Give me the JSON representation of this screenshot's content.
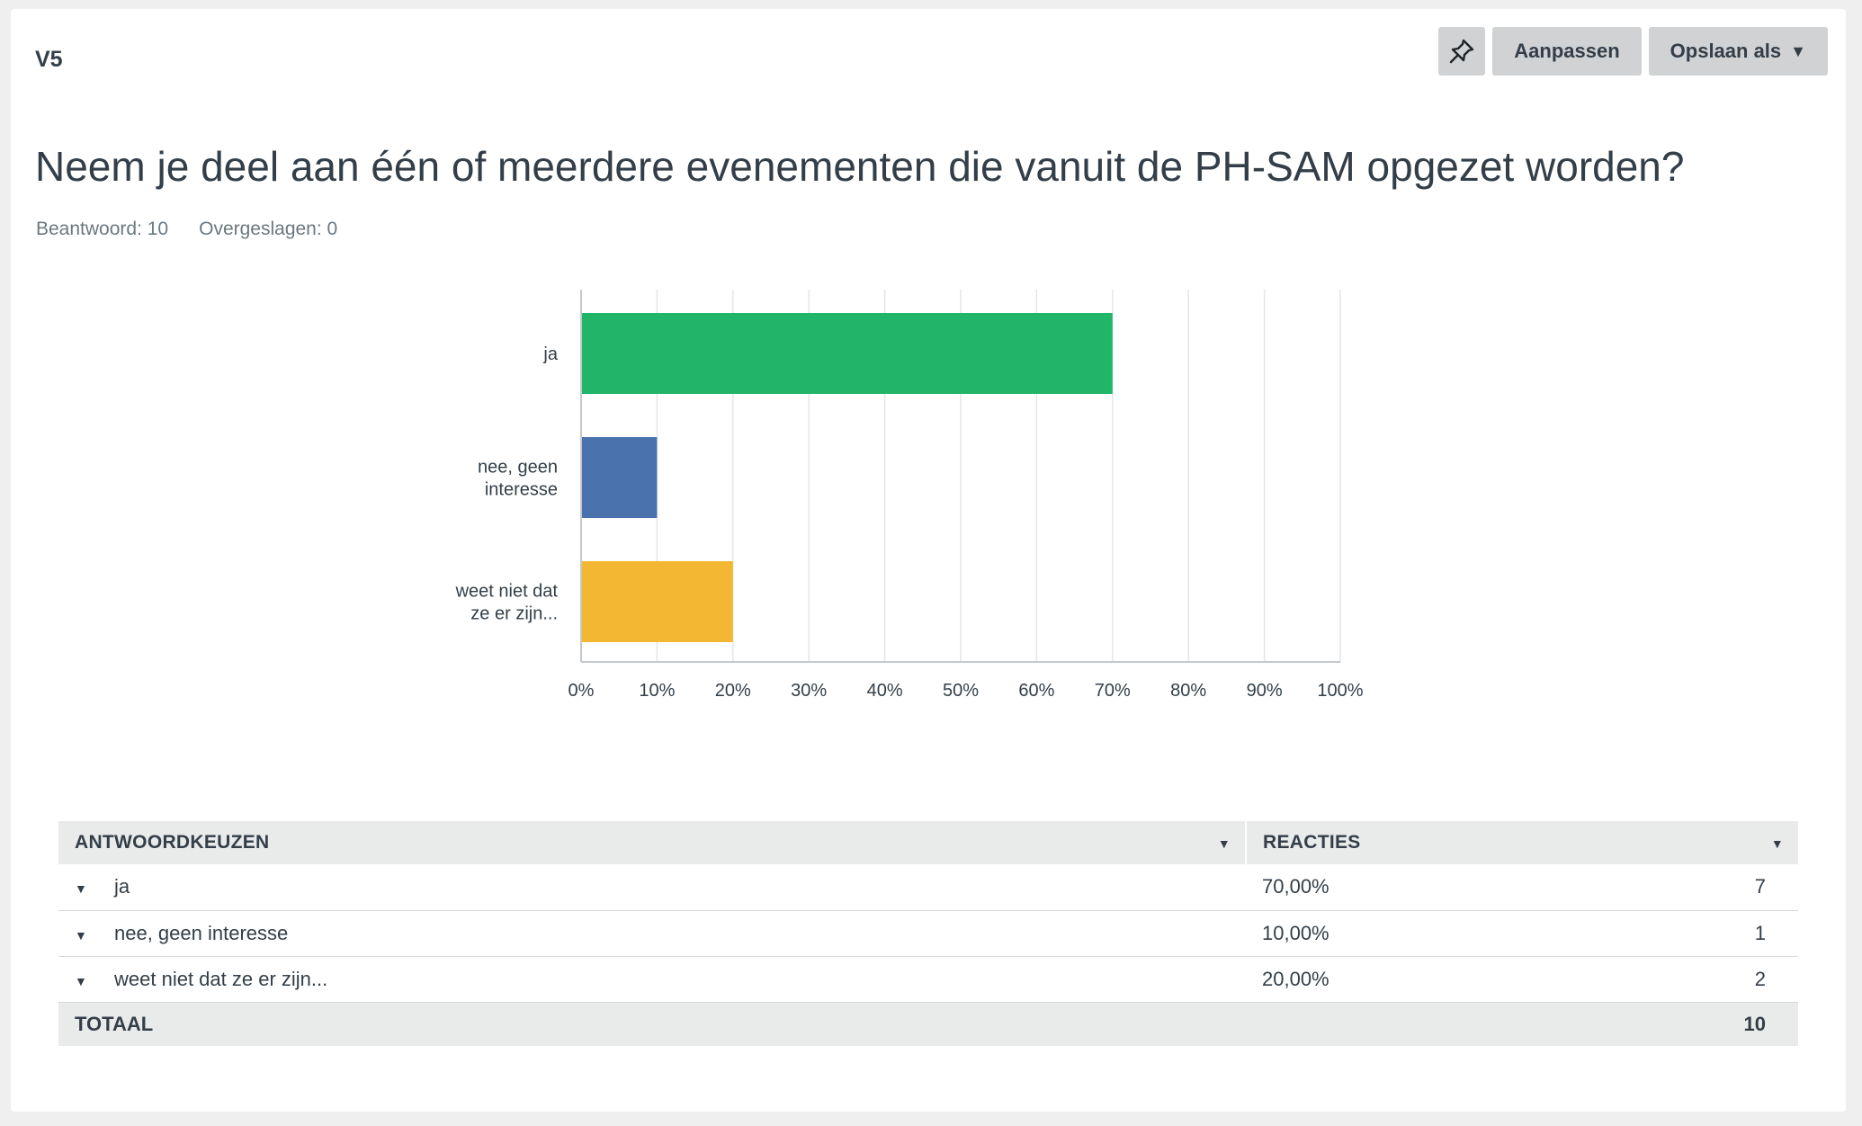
{
  "question": {
    "number": "V5",
    "title": "Neem je deel aan één of meerdere evenementen die vanuit de PH-SAM opgezet worden?",
    "answered_label": "Beantwoord: 10",
    "skipped_label": "Overgeslagen: 0"
  },
  "toolbar": {
    "customize_label": "Aanpassen",
    "save_as_label": "Opslaan als"
  },
  "chart_data": {
    "type": "bar",
    "orientation": "horizontal",
    "categories": [
      [
        "ja"
      ],
      [
        "nee, geen",
        "interesse"
      ],
      [
        "weet niet dat",
        "ze er zijn..."
      ]
    ],
    "values": [
      70,
      10,
      20
    ],
    "colors": [
      "#21b56a",
      "#4a72ac",
      "#f4b734"
    ],
    "xlim": [
      0,
      100
    ],
    "xticks": [
      "0%",
      "10%",
      "20%",
      "30%",
      "40%",
      "50%",
      "60%",
      "70%",
      "80%",
      "90%",
      "100%"
    ],
    "grid": true,
    "title": "",
    "xlabel": "",
    "ylabel": ""
  },
  "table": {
    "headers": [
      "ANTWOORDKEUZEN",
      "REACTIES"
    ],
    "rows": [
      {
        "choice": "ja",
        "percent": "70,00%",
        "count": "7"
      },
      {
        "choice": "nee, geen interesse",
        "percent": "10,00%",
        "count": "1"
      },
      {
        "choice": "weet niet dat ze er zijn...",
        "percent": "20,00%",
        "count": "2"
      }
    ],
    "total_label": "TOTAAL",
    "total_count": "10"
  }
}
